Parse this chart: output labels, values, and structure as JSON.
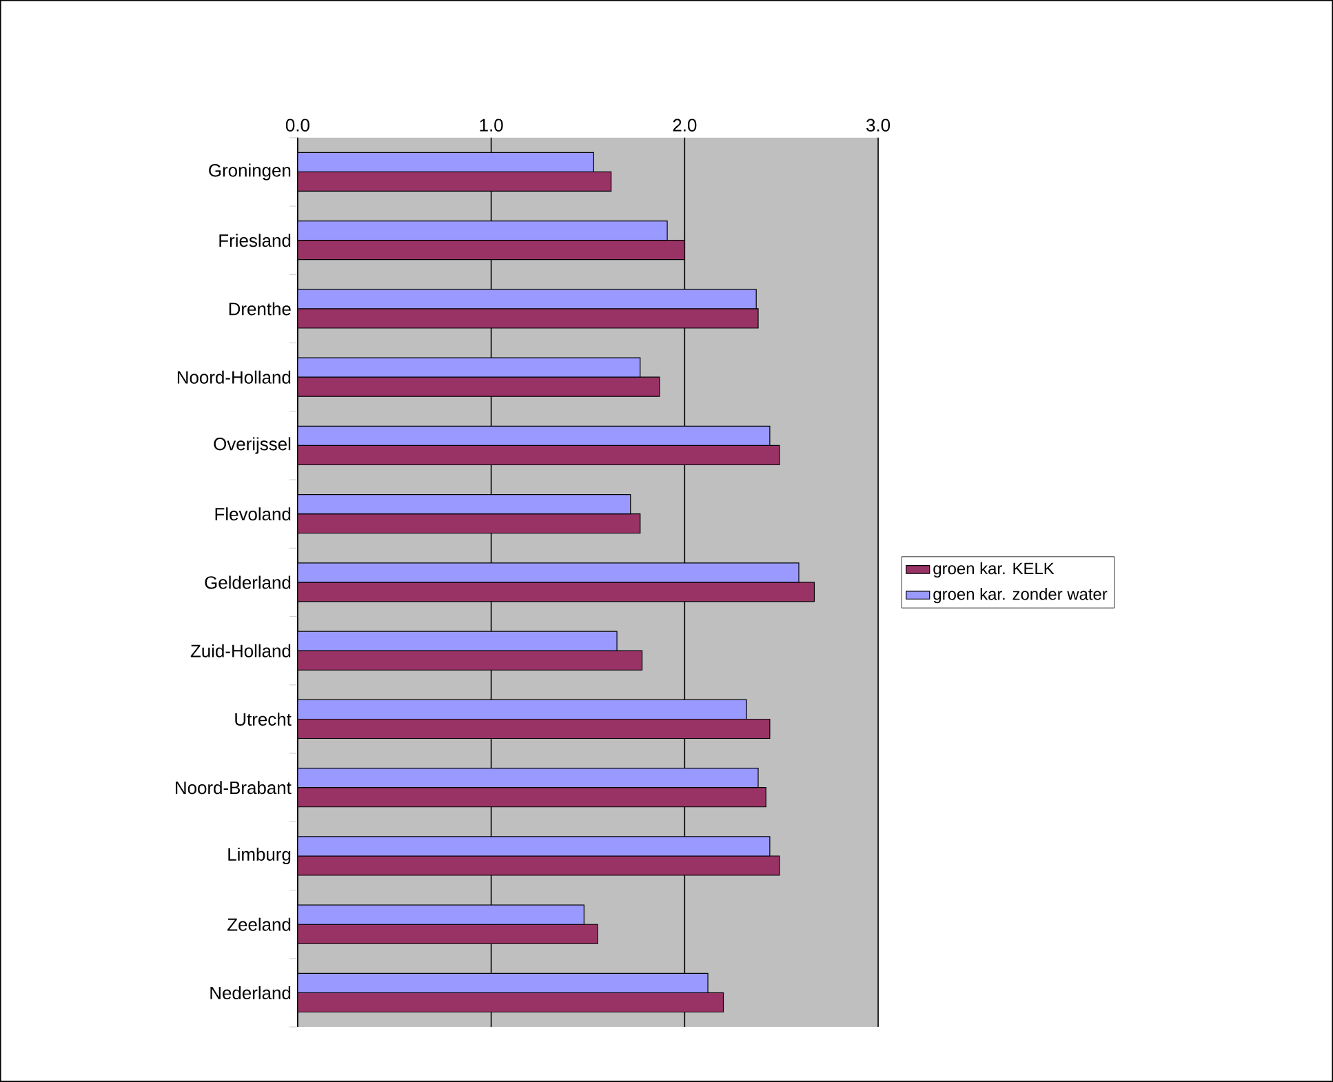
{
  "chart_data": {
    "type": "bar",
    "orientation": "horizontal",
    "categories": [
      "Groningen",
      "Friesland",
      "Drenthe",
      "Noord-Holland",
      "Overijssel",
      "Flevoland",
      "Gelderland",
      "Zuid-Holland",
      "Utrecht",
      "Noord-Brabant",
      "Limburg",
      "Zeeland",
      "Nederland"
    ],
    "series": [
      {
        "name": "groen kar. KELK",
        "color": "#993366",
        "values": [
          1.62,
          2.0,
          2.38,
          1.87,
          2.49,
          1.77,
          2.67,
          1.78,
          2.44,
          2.42,
          2.49,
          1.55,
          2.2
        ]
      },
      {
        "name": "groen kar. zonder water",
        "color": "#9999ff",
        "values": [
          1.53,
          1.91,
          2.37,
          1.77,
          2.44,
          1.72,
          2.59,
          1.65,
          2.32,
          2.38,
          2.44,
          1.48,
          2.12
        ]
      }
    ],
    "xlim": [
      0,
      3
    ],
    "xticks": [
      {
        "value": 0,
        "label": "0.0"
      },
      {
        "value": 1,
        "label": "1.0"
      },
      {
        "value": 2,
        "label": "2.0"
      },
      {
        "value": 3,
        "label": "3.0"
      }
    ],
    "grid": "x",
    "legend": "right"
  }
}
